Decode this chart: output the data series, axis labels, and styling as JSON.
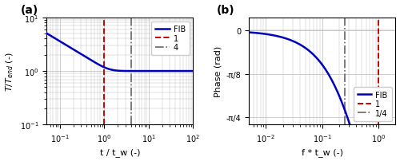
{
  "panel_a": {
    "label": "(a)",
    "xlabel": "t / t_w (-)",
    "ylabel": "T/T_end (-)",
    "xlim_log": [
      -1.3,
      2
    ],
    "ylim_log": [
      -1,
      1
    ],
    "vline_red": 1.0,
    "vline_gray": 4.0,
    "legend": [
      "FIB",
      "1",
      "4"
    ],
    "line_color": "#0000bb",
    "vline_red_color": "#cc0000",
    "vline_gray_color": "#666666"
  },
  "panel_b": {
    "label": "(b)",
    "xlabel": "f * t_w (-)",
    "ylabel": "Phase (rad)",
    "xlim_log": [
      -2.3,
      0.3
    ],
    "vline_red": 1.0,
    "vline_gray": 0.25,
    "legend": [
      "FIB",
      "1",
      "1/4"
    ],
    "line_color": "#0000bb",
    "vline_red_color": "#cc0000",
    "vline_gray_color": "#666666",
    "yticks": [
      0.0,
      -0.3926990816987242,
      -0.7853981633974483
    ],
    "yticklabels": [
      "0",
      "-π/8",
      "-π/4"
    ],
    "ylim": [
      -0.85,
      0.12
    ]
  },
  "figure_bg": "#ffffff",
  "axes_bg": "#ffffff",
  "grid_color": "#bbbbbb",
  "line_width": 1.8,
  "font_size": 8
}
